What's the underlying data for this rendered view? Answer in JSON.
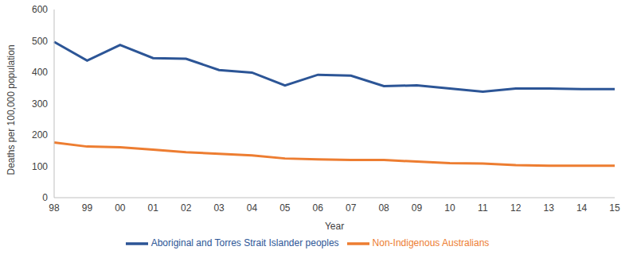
{
  "chart_data": {
    "type": "line",
    "x_label": "Year",
    "y_label": "Deaths per 100,000 population",
    "categories": [
      "98",
      "99",
      "00",
      "01",
      "02",
      "03",
      "04",
      "05",
      "06",
      "07",
      "08",
      "09",
      "10",
      "11",
      "12",
      "13",
      "14",
      "15"
    ],
    "series": [
      {
        "name": "Aboriginal and Torres Strait Islander peoples",
        "color": "#2c5596",
        "values": [
          497,
          437,
          487,
          445,
          443,
          407,
          399,
          358,
          392,
          389,
          356,
          358,
          348,
          338,
          348,
          348,
          346,
          346
        ]
      },
      {
        "name": "Non-Indigenous Australians",
        "color": "#ed7d31",
        "values": [
          176,
          163,
          161,
          153,
          145,
          140,
          135,
          125,
          122,
          120,
          120,
          115,
          110,
          109,
          104,
          102,
          102,
          102
        ]
      }
    ],
    "ylim": [
      0,
      600
    ],
    "yticks": [
      0,
      100,
      200,
      300,
      400,
      500,
      600
    ],
    "grid": false,
    "legend": "bottom"
  }
}
